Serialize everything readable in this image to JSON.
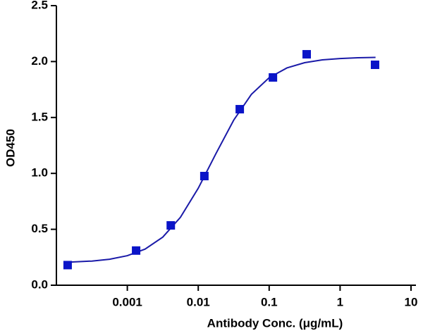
{
  "chart_data": {
    "type": "scatter",
    "x_label": "Antibody Conc. (μg/mL)",
    "y_label": "OD450",
    "log_x": true,
    "xlim": [
      0.0001,
      10
    ],
    "xticks": [
      0.001,
      0.01,
      0.1,
      1,
      10
    ],
    "ylim": [
      0,
      2.5
    ],
    "yticks": [
      {
        "value": 0,
        "label": "0.0"
      },
      0.5,
      {
        "value": 1,
        "label": "1.0"
      },
      1.5,
      {
        "value": 2,
        "label": "2.0"
      },
      2.5
    ],
    "points": {
      "color": "#0a14c8",
      "x": [
        0.000144,
        0.00133,
        0.0041,
        0.0122,
        0.0385,
        0.113,
        0.338,
        3.11
      ],
      "y": [
        0.18,
        0.31,
        0.535,
        0.976,
        1.574,
        1.858,
        2.065,
        1.971
      ]
    },
    "curve": {
      "color": "#1a1aa8",
      "x": [
        0.000158,
        0.000316,
        0.000562,
        0.001,
        0.00178,
        0.00316,
        0.00562,
        0.01,
        0.0178,
        0.0316,
        0.0562,
        0.1,
        0.178,
        0.316,
        0.562,
        1,
        1.78,
        3.16
      ],
      "y": [
        0.207,
        0.216,
        0.232,
        0.264,
        0.323,
        0.43,
        0.608,
        0.867,
        1.178,
        1.476,
        1.707,
        1.856,
        1.943,
        1.99,
        2.015,
        2.027,
        2.034,
        2.037
      ]
    }
  }
}
